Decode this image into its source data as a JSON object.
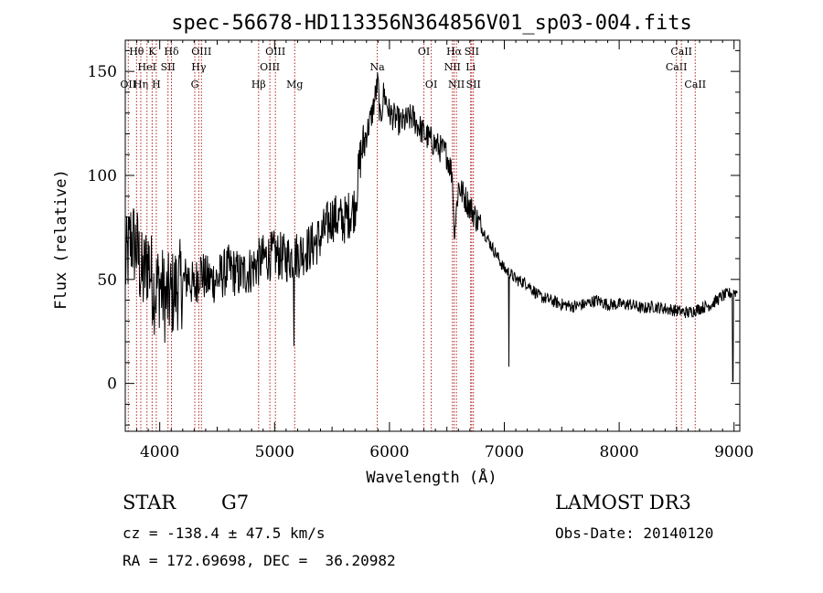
{
  "chart_data": {
    "type": "line",
    "title": "spec-56678-HD113356N364856V01_sp03-004.fits",
    "xlabel": "Wavelength (Å)",
    "ylabel": "Flux (relative)",
    "xlim": [
      3700,
      9050
    ],
    "ylim": [
      -23,
      165
    ],
    "xticks": [
      4000,
      5000,
      6000,
      7000,
      8000,
      9000
    ],
    "yticks": [
      0,
      50,
      100,
      150
    ],
    "xtick_labels": [
      "4000",
      "5000",
      "6000",
      "7000",
      "8000",
      "9000"
    ],
    "ytick_labels": [
      "0",
      "50",
      "100",
      "150"
    ],
    "series": [
      {
        "name": "flux",
        "color": "#000000",
        "x": [
          3700,
          3750,
          3800,
          3850,
          3900,
          3950,
          4000,
          4050,
          4100,
          4150,
          4200,
          4250,
          4300,
          4350,
          4400,
          4500,
          4600,
          4700,
          4800,
          4900,
          5000,
          5100,
          5200,
          5300,
          5400,
          5500,
          5600,
          5700,
          5750,
          5800,
          5850,
          5900,
          5920,
          5950,
          6000,
          6100,
          6200,
          6300,
          6400,
          6500,
          6550,
          6563,
          6600,
          6700,
          6800,
          6900,
          7000,
          7050,
          7100,
          7200,
          7300,
          7400,
          7500,
          7600,
          7700,
          7800,
          7900,
          8000,
          8100,
          8200,
          8300,
          8400,
          8500,
          8600,
          8700,
          8800,
          8900,
          9000
        ],
        "y": [
          55,
          70,
          65,
          50,
          60,
          45,
          48,
          40,
          42,
          47,
          48,
          52,
          45,
          55,
          50,
          50,
          55,
          52,
          55,
          60,
          62,
          60,
          62,
          65,
          70,
          80,
          78,
          85,
          110,
          120,
          130,
          145,
          125,
          140,
          130,
          125,
          128,
          120,
          115,
          110,
          100,
          70,
          95,
          85,
          75,
          65,
          55,
          53,
          50,
          48,
          42,
          40,
          38,
          37,
          38,
          40,
          38,
          38,
          38,
          36,
          37,
          36,
          35,
          34,
          36,
          38,
          42,
          44
        ]
      }
    ],
    "absorption_dips": [
      {
        "x": 5167,
        "y": 18
      },
      {
        "x": 6563,
        "y": 70
      },
      {
        "x": 7040,
        "y": 8
      },
      {
        "x": 8990,
        "y": 1
      }
    ],
    "spectral_lines": [
      {
        "x": 3726,
        "label": "OII",
        "row": 3
      },
      {
        "x": 3798,
        "label": "Hθ",
        "row": 1
      },
      {
        "x": 3835,
        "label": "Hη",
        "row": 3
      },
      {
        "x": 3889,
        "label": "HeI",
        "row": 2
      },
      {
        "x": 3934,
        "label": "K",
        "row": 1
      },
      {
        "x": 3970,
        "label": "H",
        "row": 3
      },
      {
        "x": 4072,
        "label": "SII",
        "row": 2
      },
      {
        "x": 4102,
        "label": "Hδ",
        "row": 1
      },
      {
        "x": 4305,
        "label": "G",
        "row": 3
      },
      {
        "x": 4340,
        "label": "Hγ",
        "row": 2
      },
      {
        "x": 4363,
        "label": "OIII",
        "row": 1
      },
      {
        "x": 4861,
        "label": "Hβ",
        "row": 3
      },
      {
        "x": 4959,
        "label": "OIII",
        "row": 2
      },
      {
        "x": 5007,
        "label": "OIII",
        "row": 1
      },
      {
        "x": 5175,
        "label": "Mg",
        "row": 3
      },
      {
        "x": 5894,
        "label": "Na",
        "row": 2
      },
      {
        "x": 6300,
        "label": "OI",
        "row": 1
      },
      {
        "x": 6364,
        "label": "OI",
        "row": 3
      },
      {
        "x": 6548,
        "label": "NII",
        "row": 2
      },
      {
        "x": 6563,
        "label": "Hα",
        "row": 1
      },
      {
        "x": 6583,
        "label": "NII",
        "row": 3
      },
      {
        "x": 6707,
        "label": "Li",
        "row": 2
      },
      {
        "x": 6716,
        "label": "SII",
        "row": 1
      },
      {
        "x": 6731,
        "label": "SII",
        "row": 3
      },
      {
        "x": 8498,
        "label": "CaII",
        "row": 2
      },
      {
        "x": 8542,
        "label": "CaII",
        "row": 1
      },
      {
        "x": 8662,
        "label": "CaII",
        "row": 3
      }
    ],
    "line_color": "#b22222",
    "grid": false,
    "legend": "none"
  },
  "footer": {
    "object_type": "STAR",
    "subclass": "G7",
    "survey": "LAMOST DR3",
    "cz": "cz = -138.4 ± 47.5 km/s",
    "obs_date": "Obs-Date: 20140120",
    "coords": "RA = 172.69698, DEC =  36.20982"
  }
}
